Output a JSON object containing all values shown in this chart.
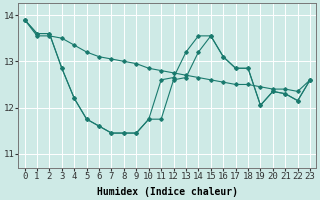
{
  "title": "",
  "xlabel": "Humidex (Indice chaleur)",
  "ylabel": "",
  "xlim": [
    -0.5,
    23.5
  ],
  "ylim": [
    10.7,
    14.25
  ],
  "yticks": [
    11,
    12,
    13,
    14
  ],
  "xticks": [
    0,
    1,
    2,
    3,
    4,
    5,
    6,
    7,
    8,
    9,
    10,
    11,
    12,
    13,
    14,
    15,
    16,
    17,
    18,
    19,
    20,
    21,
    22,
    23
  ],
  "background_color": "#ceeae6",
  "grid_color": "#ffffff",
  "line_color": "#1a7a6e",
  "line1_y": [
    13.9,
    13.6,
    13.6,
    12.85,
    12.2,
    11.75,
    11.6,
    11.45,
    11.45,
    11.45,
    11.75,
    11.75,
    12.6,
    12.65,
    13.2,
    13.55,
    13.1,
    12.85,
    12.85,
    12.05,
    12.35,
    12.3,
    12.15,
    12.6
  ],
  "line2_y": [
    13.9,
    13.55,
    13.55,
    13.5,
    13.35,
    13.2,
    13.1,
    13.05,
    13.0,
    12.95,
    12.85,
    12.8,
    12.75,
    12.7,
    12.65,
    12.6,
    12.55,
    12.5,
    12.5,
    12.45,
    12.4,
    12.4,
    12.35,
    12.6
  ],
  "line3_y": [
    13.9,
    13.6,
    13.6,
    12.85,
    12.2,
    11.75,
    11.6,
    11.45,
    11.45,
    11.45,
    11.75,
    12.6,
    12.65,
    13.2,
    13.55,
    13.55,
    13.1,
    12.85,
    12.85,
    12.05,
    12.35,
    12.3,
    12.15,
    12.6
  ],
  "xlabel_fontsize": 7,
  "tick_fontsize": 6.5,
  "ylabel_fontsize": 7
}
